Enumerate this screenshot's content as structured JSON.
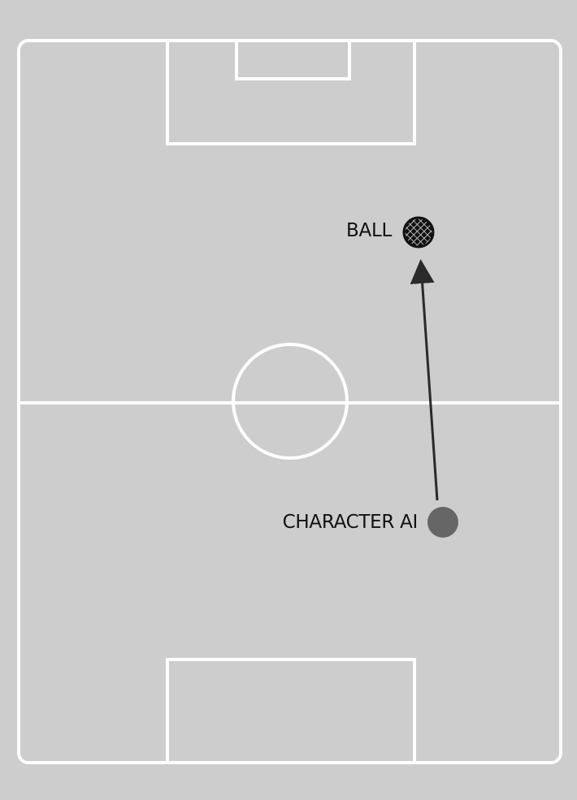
{
  "labels": {
    "ball": "BALL",
    "character": "CHARACTER AI"
  },
  "icons": {
    "ball": "soccer-ball-icon",
    "character": "character-ai-marker-icon",
    "arrow": "path-arrow"
  },
  "colors": {
    "background": "#cdcdcd",
    "field_lines": "#ffffff",
    "character": "#666666",
    "arrow": "#2a2a2a",
    "text": "#111111"
  }
}
